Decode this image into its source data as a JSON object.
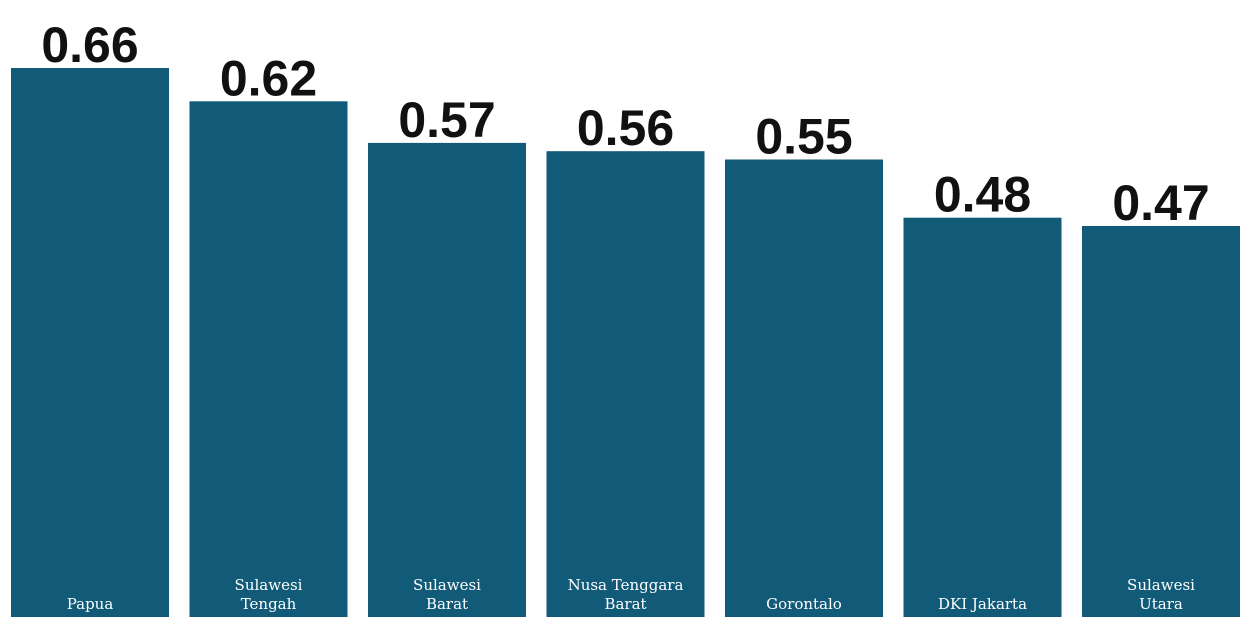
{
  "chart_data": {
    "type": "bar",
    "title": "",
    "xlabel": "",
    "ylabel": "",
    "categories": [
      [
        "Papua"
      ],
      [
        "Sulawesi",
        "Tengah"
      ],
      [
        "Sulawesi",
        "Barat"
      ],
      [
        "Nusa Tenggara",
        "Barat"
      ],
      [
        "Gorontalo"
      ],
      [
        "DKI Jakarta"
      ],
      [
        "Sulawesi",
        "Utara"
      ]
    ],
    "values": [
      0.66,
      0.62,
      0.57,
      0.56,
      0.55,
      0.48,
      0.47
    ],
    "value_labels": [
      "0.66",
      "0.62",
      "0.57",
      "0.56",
      "0.55",
      "0.48",
      "0.47"
    ],
    "ylim": [
      0,
      0.66
    ],
    "grid": false,
    "legend": "none",
    "bar_color": "#115a78",
    "label_color": "#111111",
    "category_label_color": "#ffffff"
  }
}
